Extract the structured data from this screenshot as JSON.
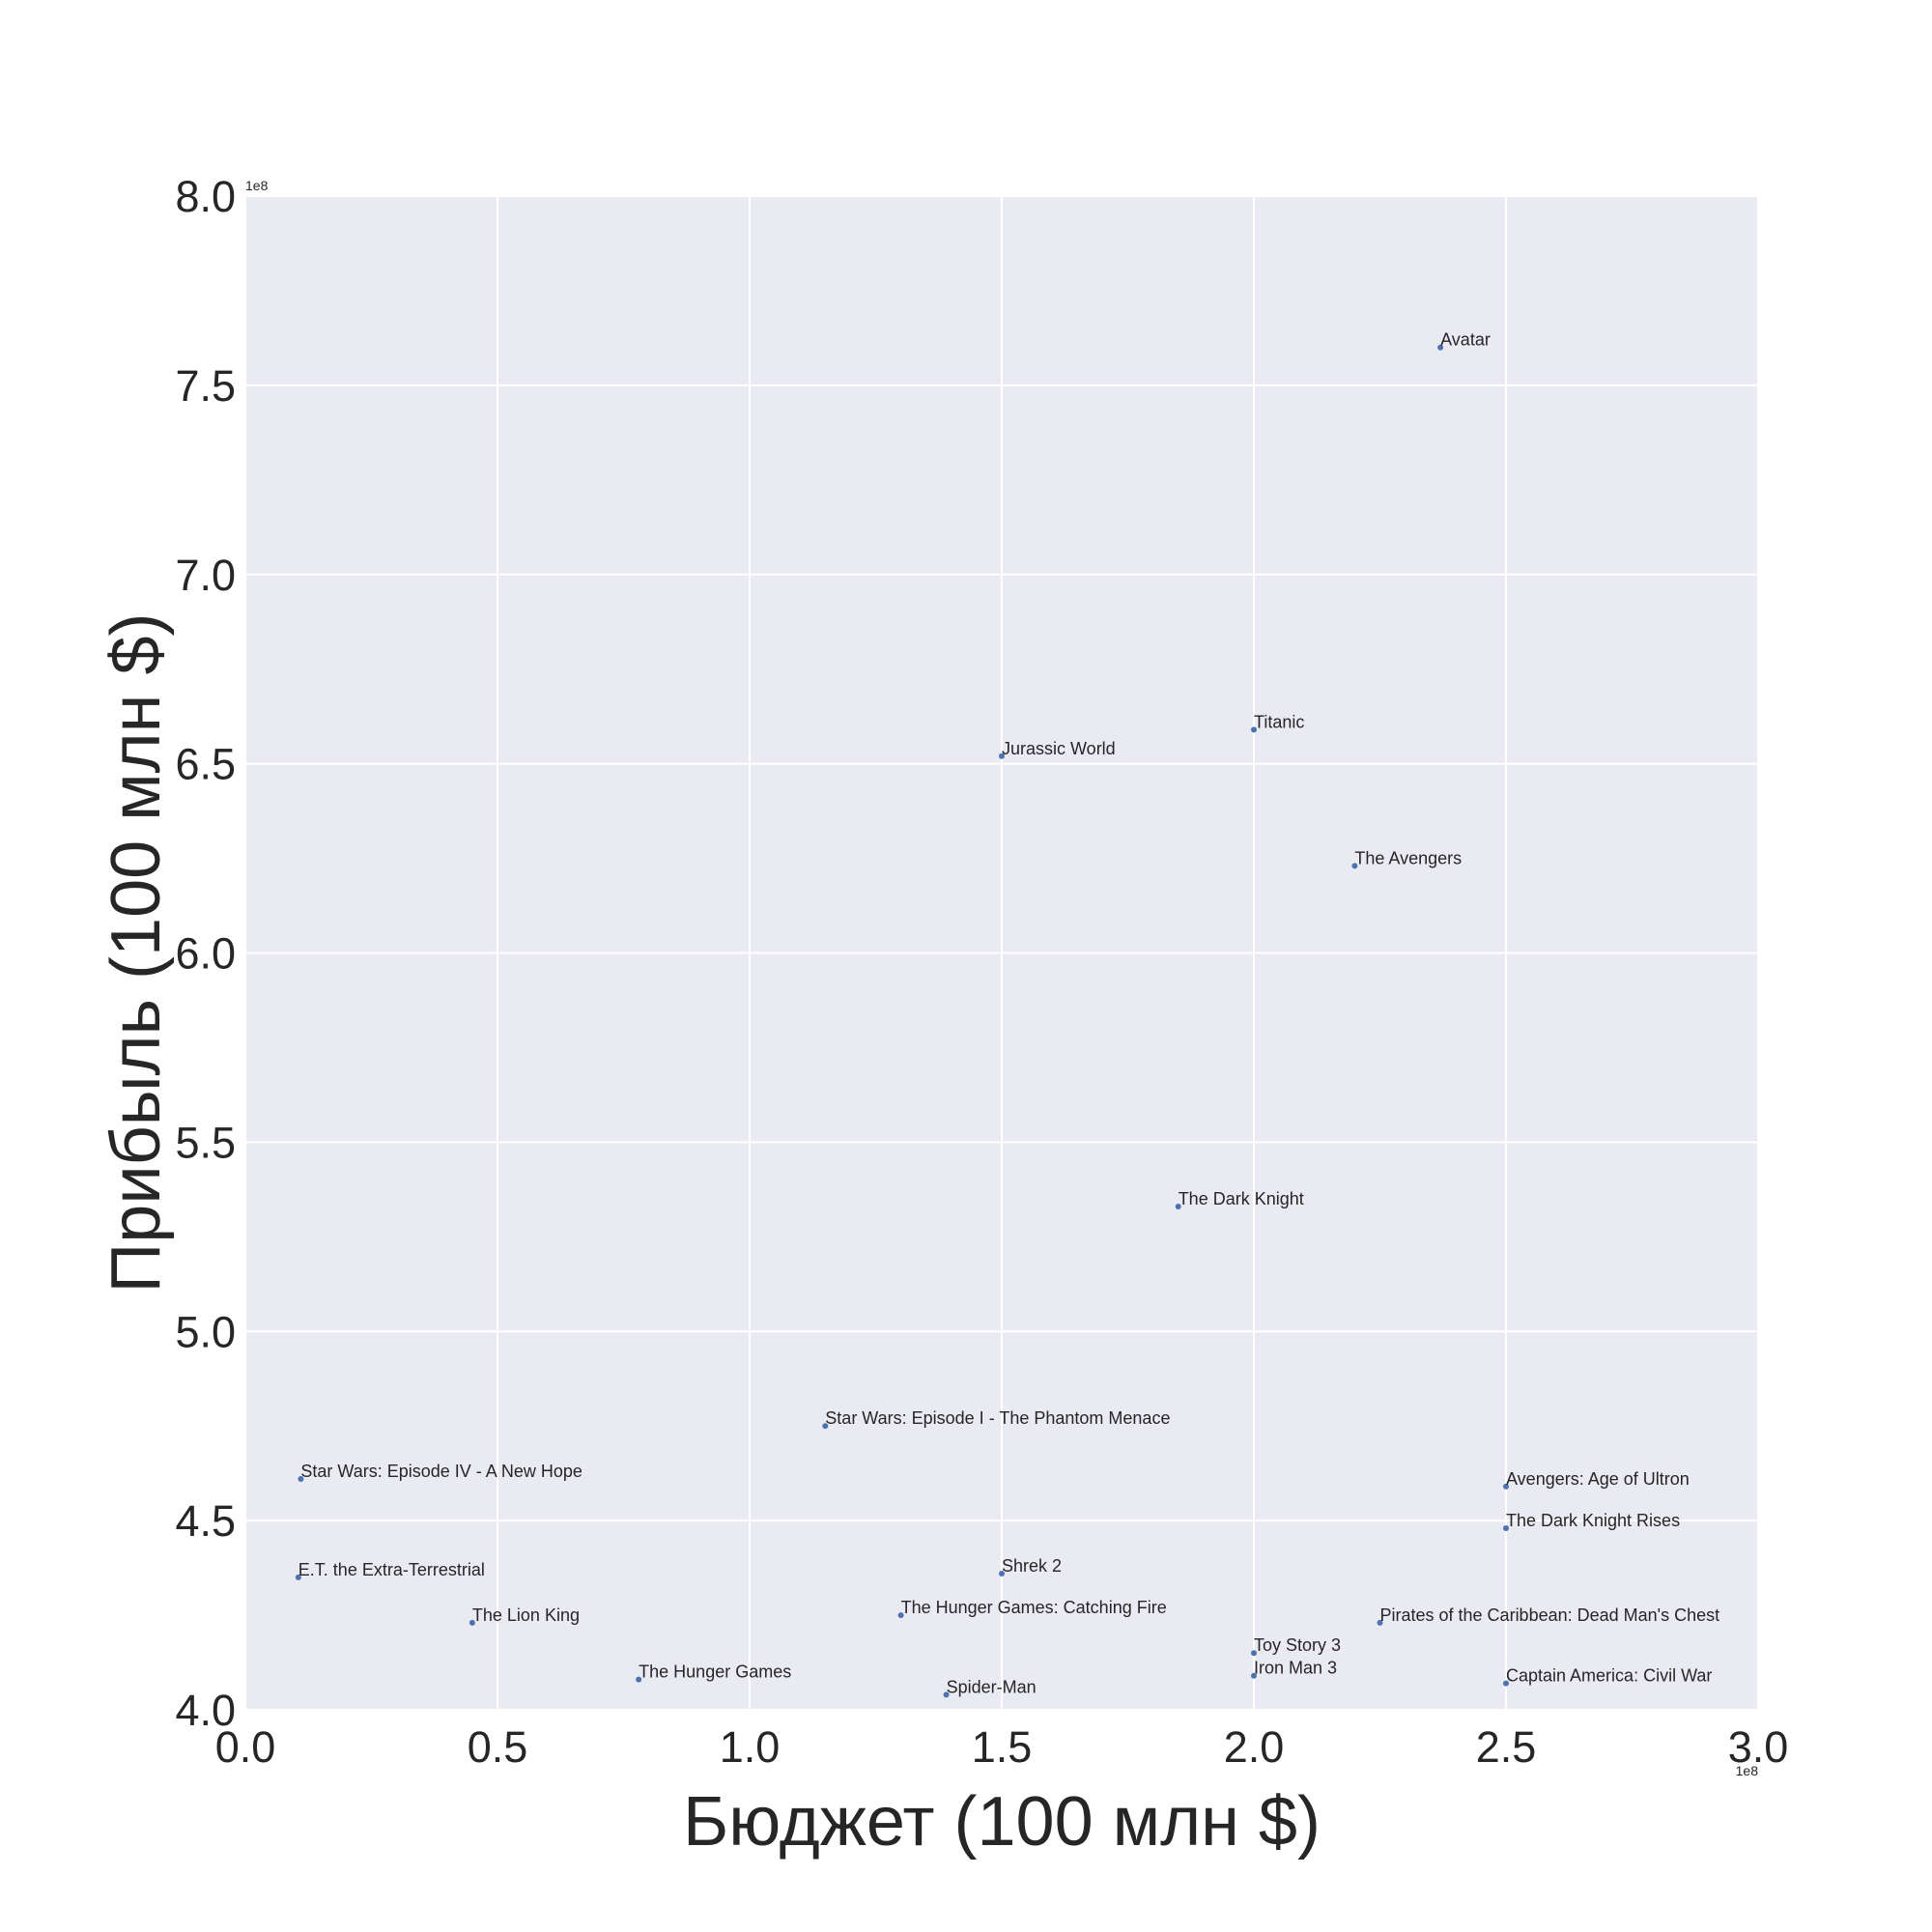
{
  "chart_data": {
    "type": "scatter",
    "xlabel": "Бюджет (100 млн $)",
    "ylabel": "Прибыль (100 млн $)",
    "x_offset_label": "1e8",
    "y_offset_label": "1e8",
    "xlim": [
      0.0,
      3.0
    ],
    "ylim": [
      4.0,
      8.0
    ],
    "xticks": [
      "0.0",
      "0.5",
      "1.0",
      "1.5",
      "2.0",
      "2.5",
      "3.0"
    ],
    "yticks": [
      "4.0",
      "4.5",
      "5.0",
      "5.5",
      "6.0",
      "6.5",
      "7.0",
      "7.5",
      "8.0"
    ],
    "grid": true,
    "background_color": "#eaeaf2",
    "point_color": "#4c72b0",
    "points": [
      {
        "label": "Avatar",
        "x": 2.37,
        "y": 7.6
      },
      {
        "label": "Titanic",
        "x": 2.0,
        "y": 6.59
      },
      {
        "label": "Jurassic World",
        "x": 1.5,
        "y": 6.52
      },
      {
        "label": "The Avengers",
        "x": 2.2,
        "y": 6.23
      },
      {
        "label": "The Dark Knight",
        "x": 1.85,
        "y": 5.33
      },
      {
        "label": "Star Wars: Episode I - The Phantom Menace",
        "x": 1.15,
        "y": 4.75
      },
      {
        "label": "Star Wars: Episode IV - A New Hope",
        "x": 0.11,
        "y": 4.61
      },
      {
        "label": "Avengers: Age of Ultron",
        "x": 2.5,
        "y": 4.59
      },
      {
        "label": "The Dark Knight Rises",
        "x": 2.5,
        "y": 4.48
      },
      {
        "label": "Shrek 2",
        "x": 1.5,
        "y": 4.36
      },
      {
        "label": "E.T. the Extra-Terrestrial",
        "x": 0.105,
        "y": 4.35
      },
      {
        "label": "The Lion King",
        "x": 0.45,
        "y": 4.23
      },
      {
        "label": "The Hunger Games: Catching Fire",
        "x": 1.3,
        "y": 4.25
      },
      {
        "label": "Pirates of the Caribbean: Dead Man's Chest",
        "x": 2.25,
        "y": 4.23
      },
      {
        "label": "Toy Story 3",
        "x": 2.0,
        "y": 4.15
      },
      {
        "label": "Iron Man 3",
        "x": 2.0,
        "y": 4.09
      },
      {
        "label": "The Hunger Games",
        "x": 0.78,
        "y": 4.08
      },
      {
        "label": "Captain America: Civil War",
        "x": 2.5,
        "y": 4.07
      },
      {
        "label": "Spider-Man",
        "x": 1.39,
        "y": 4.04
      }
    ]
  }
}
